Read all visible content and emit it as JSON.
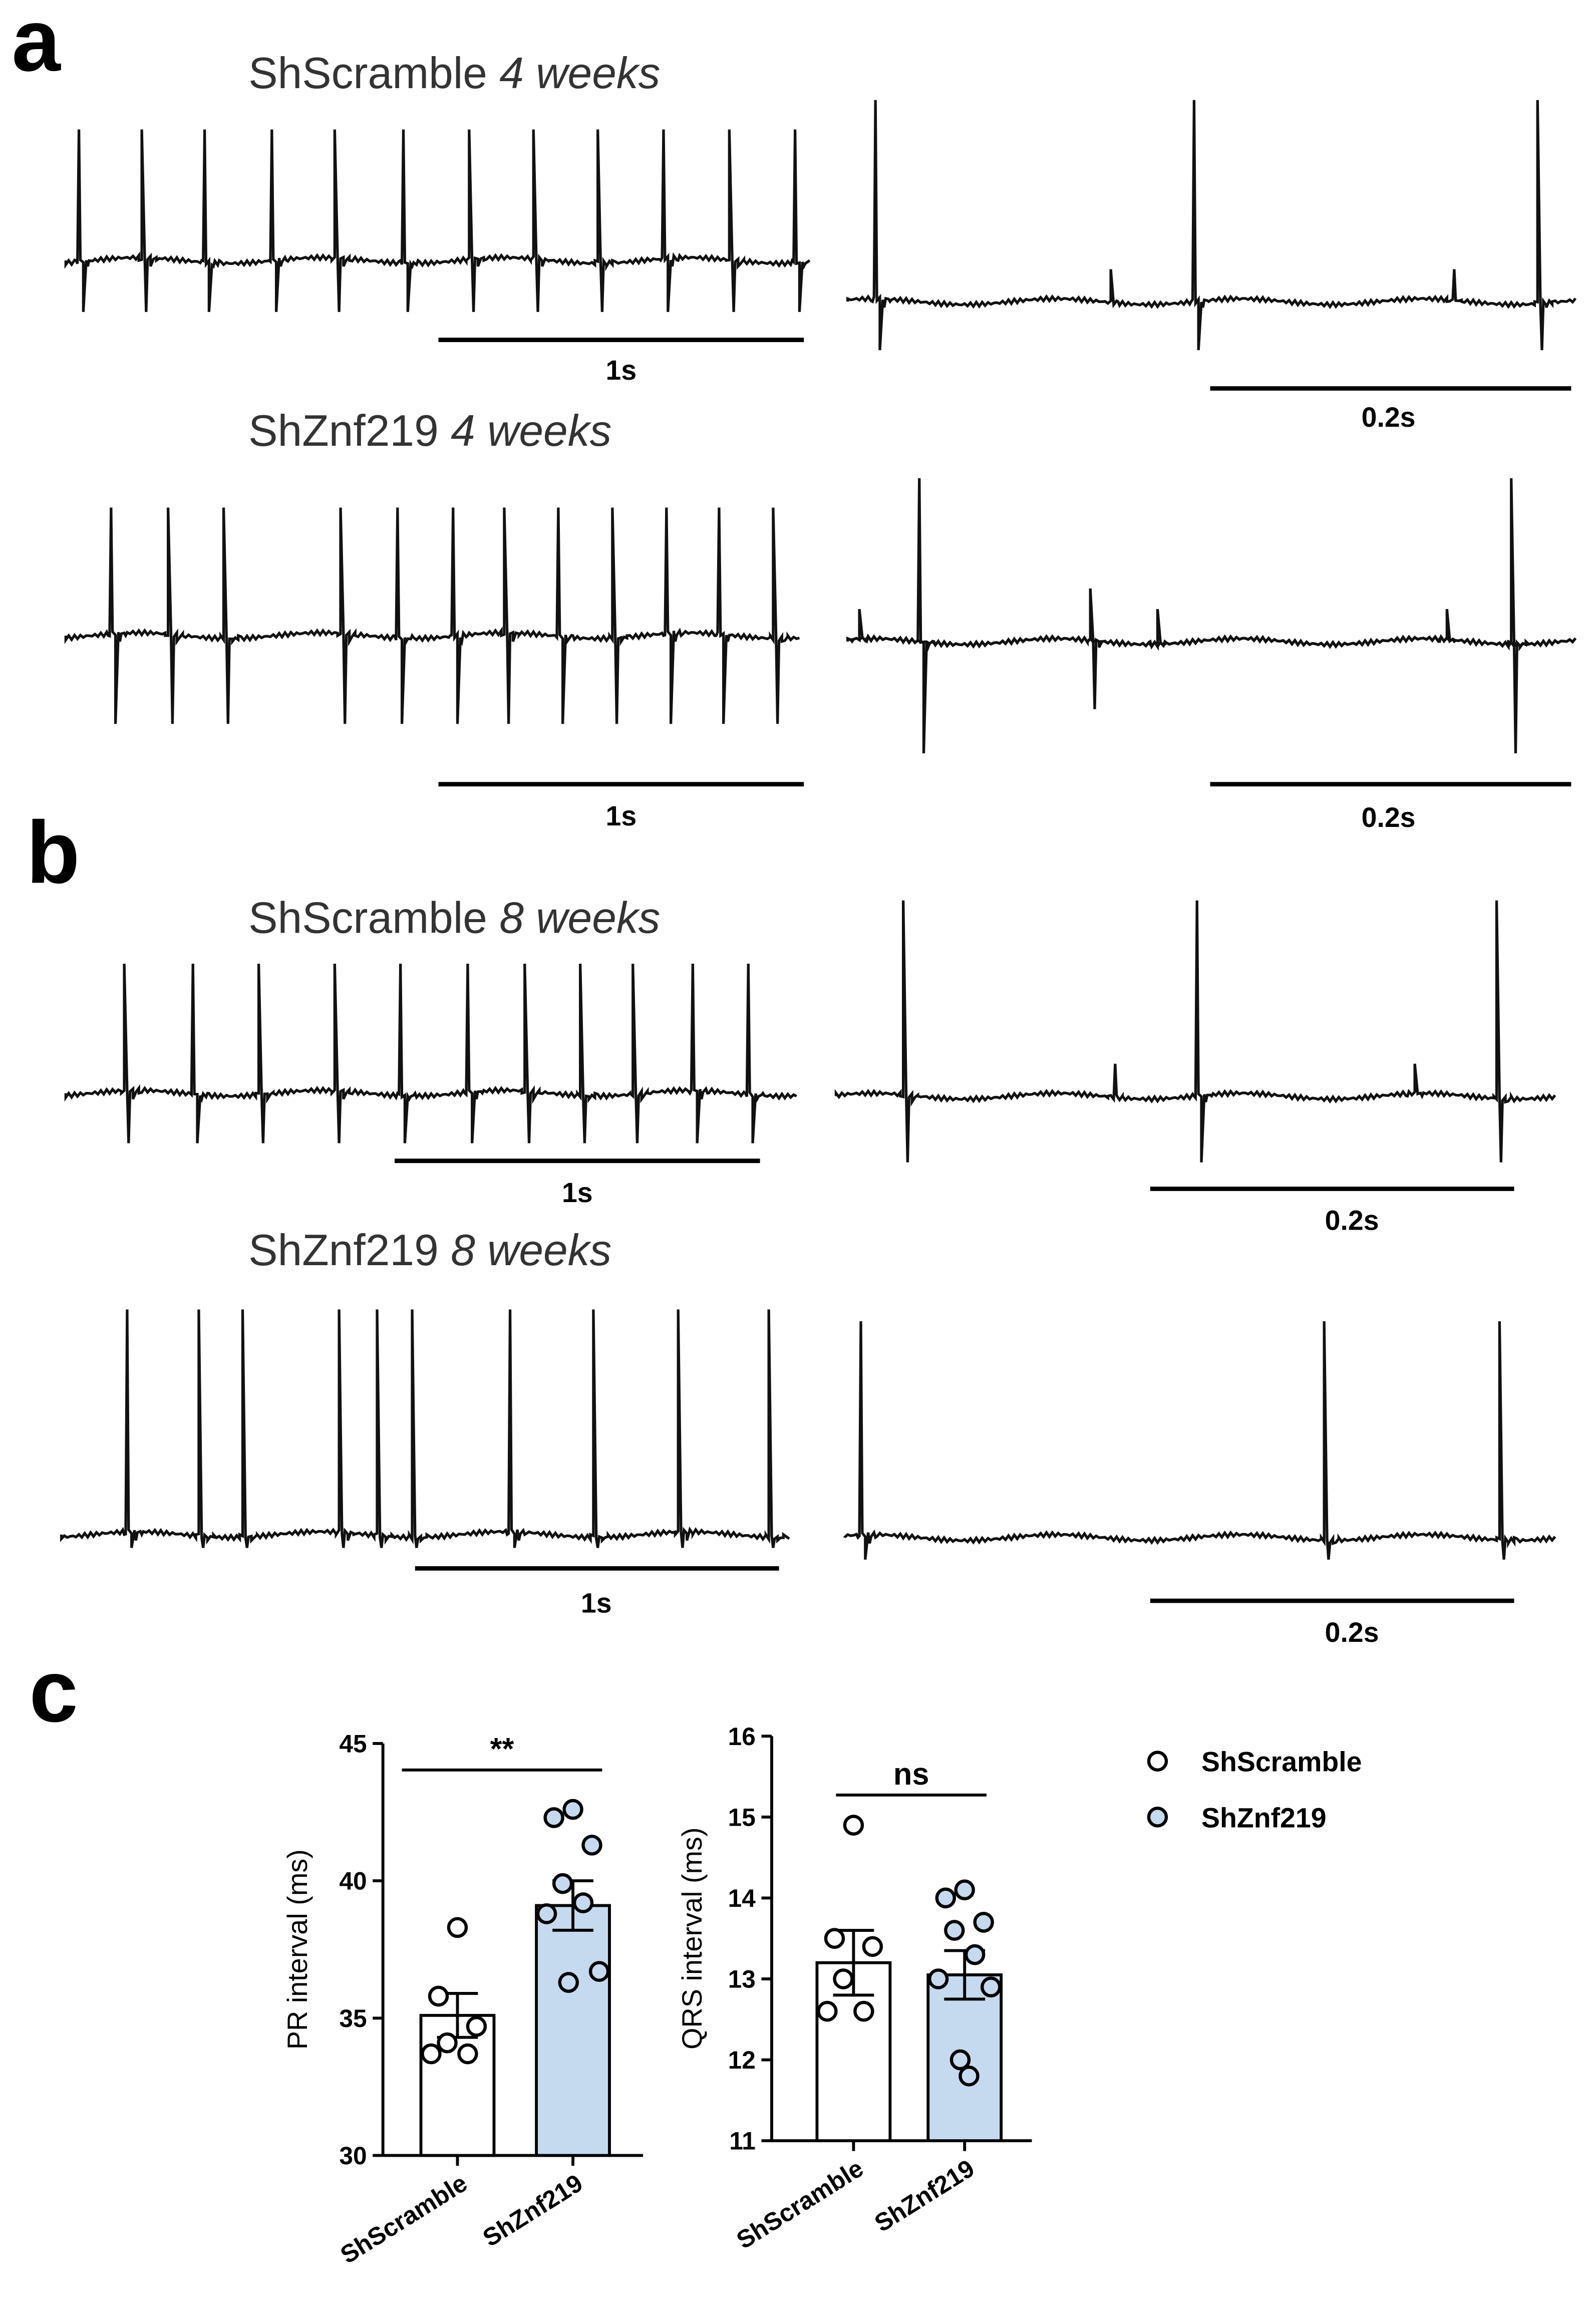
{
  "panels": {
    "a": {
      "letter": "a",
      "rows": [
        {
          "label": "ShScramble",
          "time": "4 weeks",
          "scale_left": "1s",
          "scale_right": "0.2s"
        },
        {
          "label": "ShZnf219",
          "time": "4 weeks",
          "scale_left": "1s",
          "scale_right": "0.2s"
        }
      ]
    },
    "b": {
      "letter": "b",
      "rows": [
        {
          "label": "ShScramble",
          "time": "8 weeks",
          "scale_left": "1s",
          "scale_right": "0.2s"
        },
        {
          "label": "ShZnf219",
          "time": "8 weeks",
          "scale_left": "1s",
          "scale_right": "0.2s"
        }
      ]
    },
    "c": {
      "letter": "c",
      "legend": [
        {
          "name": "ShScramble",
          "color": "#ffffff"
        },
        {
          "name": "ShZnf219",
          "color": "#c5d9ef"
        }
      ]
    }
  },
  "chart_data": [
    {
      "type": "bar",
      "y_label": "PR interval (ms)",
      "categories": [
        "ShScramble",
        "ShZnf219"
      ],
      "values": [
        35.1,
        39.1
      ],
      "errors": [
        0.8,
        0.9
      ],
      "colors": [
        "#ffffff",
        "#c5d9ef"
      ],
      "points": [
        [
          38.3,
          35.8,
          34.7,
          34.1,
          33.7,
          33.7
        ],
        [
          42.6,
          42.3,
          41.3,
          39.9,
          39.2,
          38.8,
          36.7,
          36.3
        ]
      ],
      "ylim": [
        30,
        45
      ],
      "yticks": [
        30,
        35,
        40,
        45
      ],
      "annotation": "**"
    },
    {
      "type": "bar",
      "y_label": "QRS interval (ms)",
      "categories": [
        "ShScramble",
        "ShZnf219"
      ],
      "values": [
        13.2,
        13.05
      ],
      "errors": [
        0.4,
        0.3
      ],
      "colors": [
        "#ffffff",
        "#c5d9ef"
      ],
      "points": [
        [
          14.9,
          13.5,
          13.4,
          13.0,
          12.6,
          12.6
        ],
        [
          14.1,
          14.0,
          13.7,
          13.6,
          13.3,
          13.0,
          12.9,
          12.0,
          11.8
        ]
      ],
      "ylim": [
        11,
        16
      ],
      "yticks": [
        11,
        12,
        13,
        14,
        15,
        16
      ],
      "annotation": "ns"
    }
  ]
}
